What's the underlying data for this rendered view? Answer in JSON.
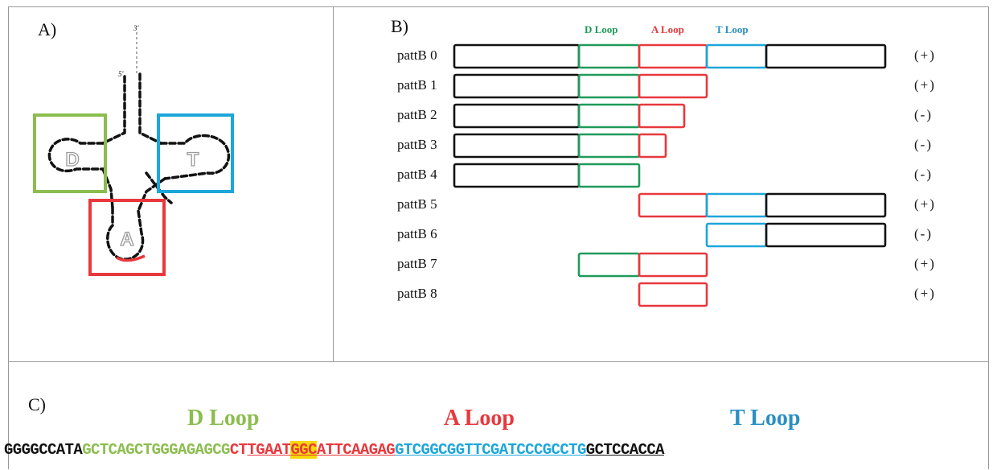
{
  "panel_a": {
    "label": "A)",
    "end_5": "5'",
    "end_3": "3'",
    "loops": {
      "d": "D",
      "a": "A",
      "t": "T"
    }
  },
  "panel_b": {
    "label": "B)",
    "headers": {
      "d": "D Loop",
      "a": "A Loop",
      "t": "T Loop"
    },
    "rows": [
      {
        "name": "pattB 0",
        "sign": "(+)",
        "seg": [
          "b",
          "d",
          "a",
          "t",
          "b"
        ]
      },
      {
        "name": "pattB 1",
        "sign": "(+)",
        "seg": [
          "b",
          "d",
          "a"
        ]
      },
      {
        "name": "pattB 2",
        "sign": "(-)",
        "seg": [
          "b",
          "d",
          "a2"
        ]
      },
      {
        "name": "pattB 3",
        "sign": "(-)",
        "seg": [
          "b",
          "d",
          "a3"
        ]
      },
      {
        "name": "pattB 4",
        "sign": "(-)",
        "seg": [
          "b",
          "d"
        ]
      },
      {
        "name": "pattB 5",
        "sign": "(+)",
        "seg": [
          "a",
          "t",
          "b"
        ]
      },
      {
        "name": "pattB 6",
        "sign": "(-)",
        "seg": [
          "t",
          "b"
        ]
      },
      {
        "name": "pattB 7",
        "sign": "(+)",
        "seg": [
          "d",
          "a"
        ]
      },
      {
        "name": "pattB 8",
        "sign": "(+)",
        "seg": [
          "a"
        ]
      }
    ]
  },
  "panel_c": {
    "label": "C)",
    "titles": {
      "d": "D Loop",
      "a": "A Loop",
      "t": "T Loop"
    },
    "sequence": {
      "black_start": "GGGGCCATA",
      "green": "GCTCAGCTGGGAGAGCG",
      "red_plain": "CT",
      "red_u1": "TGAAT",
      "red_hl": "GGC",
      "red_u2": "ATTCAAGAG",
      "blue": "GTCGGCGGTTCGATCCCGCCTG",
      "black_u1": "GCTCCACCA"
    }
  },
  "colors": {
    "green": "#8bbd4f",
    "green_box": "#1f9a5a",
    "red": "#e8383d",
    "blue": "#1ca6d9",
    "blue_hdr": "#2a8fc4",
    "highlight": "#f5d90a",
    "black": "#111111"
  }
}
